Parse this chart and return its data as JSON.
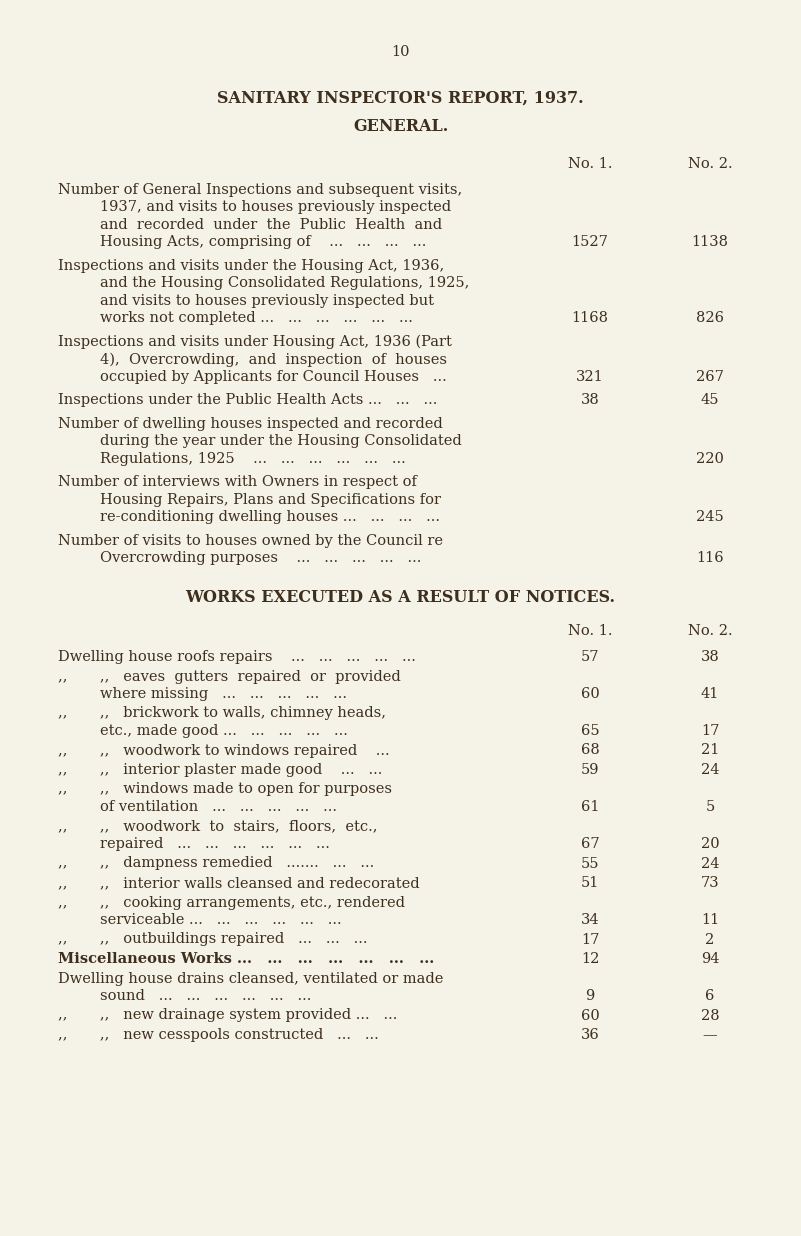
{
  "bg_color": "#f5f2e8",
  "text_color": "#3d2f1e",
  "page_number": "10",
  "title1": "SANITARY INSPECTOR'S REPORT, 1937.",
  "title2": "GENERAL.",
  "col_header_no1": "No. 1.",
  "col_header_no2": "No. 2.",
  "general_rows": [
    {
      "lines": [
        "Number of General Inspections and subsequent visits,",
        "1937, and visits to houses previously inspected",
        "and  recorded  under  the  Public  Health  and",
        "Housing Acts, comprising of    ...   ...   ...   ..."
      ],
      "no1": "1527",
      "no2": "1138"
    },
    {
      "lines": [
        "Inspections and visits under the Housing Act, 1936,",
        "and the Housing Consolidated Regulations, 1925,",
        "and visits to houses previously inspected but",
        "works not completed ...   ...   ...   ...   ...   ..."
      ],
      "no1": "1168",
      "no2": "826"
    },
    {
      "lines": [
        "Inspections and visits under Housing Act, 1936 (Part",
        "4),  Overcrowding,  and  inspection  of  houses",
        "occupied by Applicants for Council Houses   ..."
      ],
      "no1": "321",
      "no2": "267"
    },
    {
      "lines": [
        "Inspections under the Public Health Acts ...   ...   ..."
      ],
      "no1": "38",
      "no2": "45"
    },
    {
      "lines": [
        "Number of dwelling houses inspected and recorded",
        "during the year under the Housing Consolidated",
        "Regulations, 1925    ...   ...   ...   ...   ...   ..."
      ],
      "no1": "",
      "no2": "220"
    },
    {
      "lines": [
        "Number of interviews with Owners in respect of",
        "Housing Repairs, Plans and Specifications for",
        "re-conditioning dwelling houses ...   ...   ...   ..."
      ],
      "no1": "",
      "no2": "245"
    },
    {
      "lines": [
        "Number of visits to houses owned by the Council re",
        "Overcrowding purposes    ...   ...   ...   ...   ..."
      ],
      "no1": "",
      "no2": "116"
    }
  ],
  "section2_title": "WORKS EXECUTED AS A RESULT OF NOTICES.",
  "works_rows": [
    {
      "lines": [
        "Dwelling house roofs repairs    ...   ...   ...   ...   ..."
      ],
      "bold": false,
      "no1": "57",
      "no2": "38"
    },
    {
      "lines": [
        ",,       ,,   eaves  gutters  repaired  or  provided",
        "where missing   ...   ...   ...   ...   ..."
      ],
      "bold": false,
      "no1": "60",
      "no2": "41"
    },
    {
      "lines": [
        ",,       ,,   brickwork to walls, chimney heads,",
        "etc., made good ...   ...   ...   ...   ..."
      ],
      "bold": false,
      "no1": "65",
      "no2": "17"
    },
    {
      "lines": [
        ",,       ,,   woodwork to windows repaired    ..."
      ],
      "bold": false,
      "no1": "68",
      "no2": "21"
    },
    {
      "lines": [
        ",,       ,,   interior plaster made good    ...   ..."
      ],
      "bold": false,
      "no1": "59",
      "no2": "24"
    },
    {
      "lines": [
        ",,       ,,   windows made to open for purposes",
        "of ventilation   ...   ...   ...   ...   ..."
      ],
      "bold": false,
      "no1": "61",
      "no2": "5"
    },
    {
      "lines": [
        ",,       ,,   woodwork  to  stairs,  floors,  etc.,",
        "repaired   ...   ...   ...   ...   ...   ..."
      ],
      "bold": false,
      "no1": "67",
      "no2": "20"
    },
    {
      "lines": [
        ",,       ,,   dampness remedied   .......   ...   ..."
      ],
      "bold": false,
      "no1": "55",
      "no2": "24"
    },
    {
      "lines": [
        ",,       ,,   interior walls cleansed and redecorated"
      ],
      "bold": false,
      "no1": "51",
      "no2": "73"
    },
    {
      "lines": [
        ",,       ,,   cooking arrangements, etc., rendered",
        "serviceable ...   ...   ...   ...   ...   ..."
      ],
      "bold": false,
      "no1": "34",
      "no2": "11"
    },
    {
      "lines": [
        ",,       ,,   outbuildings repaired   ...   ...   ..."
      ],
      "bold": false,
      "no1": "17",
      "no2": "2"
    },
    {
      "lines": [
        "Miscellaneous Works ...   ...   ...   ...   ...   ...   ..."
      ],
      "bold": true,
      "no1": "12",
      "no2": "94"
    },
    {
      "lines": [
        "Dwelling house drains cleansed, ventilated or made",
        "sound   ...   ...   ...   ...   ...   ..."
      ],
      "bold": false,
      "no1": "9",
      "no2": "6"
    },
    {
      "lines": [
        ",,       ,,   new drainage system provided ...   ..."
      ],
      "bold": false,
      "no1": "60",
      "no2": "28"
    },
    {
      "lines": [
        ",,       ,,   new cesspools constructed   ...   ..."
      ],
      "bold": false,
      "no1": "36",
      "no2": "—"
    }
  ]
}
